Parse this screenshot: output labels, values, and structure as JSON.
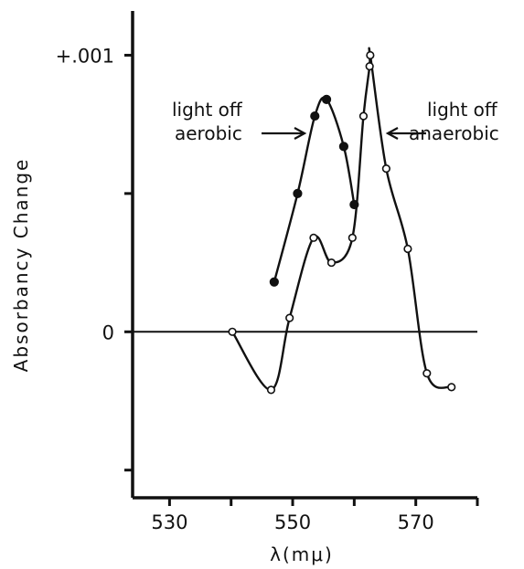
{
  "chart_data": {
    "type": "line",
    "title": "",
    "xlabel": "λ(mμ)",
    "ylabel": "Absorbancy Change",
    "xlim": [
      524,
      580
    ],
    "ylim": [
      -0.0006,
      0.00116
    ],
    "x_ticks": [
      530,
      550,
      570
    ],
    "x_tick_labels": [
      "530",
      "550",
      "570"
    ],
    "y_ticks": [
      0,
      0.001
    ],
    "y_tick_labels": [
      "0",
      "+.001"
    ],
    "y_minor_ticks": [
      0.0005,
      -0.0005
    ],
    "grid": false,
    "baseline": 0,
    "series": [
      {
        "marker": "filled",
        "points": [
          [
            547.0,
            0.00018
          ],
          [
            550.8,
            0.0005
          ],
          [
            553.6,
            0.00078
          ],
          [
            555.5,
            0.00084
          ],
          [
            558.3,
            0.00067
          ],
          [
            560.0,
            0.00046
          ]
        ]
      },
      {
        "marker": "open",
        "points": [
          [
            540.2,
            0.0
          ],
          [
            546.5,
            -0.00021
          ],
          [
            549.5,
            5e-05
          ],
          [
            553.4,
            0.00034
          ],
          [
            556.3,
            0.00025
          ],
          [
            559.7,
            0.00034
          ],
          [
            561.5,
            0.00078
          ],
          [
            562.5,
            0.00096
          ],
          [
            562.6,
            0.001
          ],
          [
            565.2,
            0.00059
          ],
          [
            568.7,
            0.0003
          ],
          [
            571.8,
            -0.00015
          ],
          [
            575.8,
            -0.0002
          ]
        ]
      }
    ],
    "annotations": [
      {
        "lines": [
          "light off",
          "aerobic"
        ],
        "arrow": "right"
      },
      {
        "lines": [
          "light off",
          "anaerobic"
        ],
        "arrow": "left"
      }
    ]
  }
}
